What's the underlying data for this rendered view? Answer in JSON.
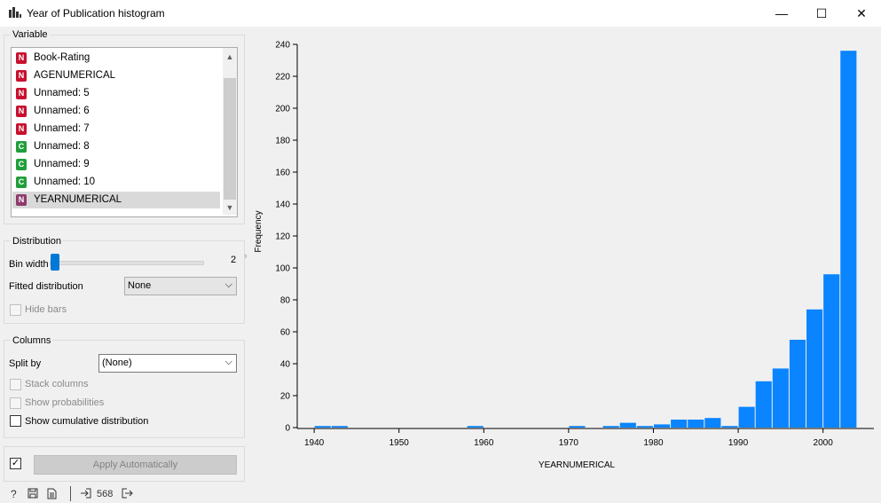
{
  "window": {
    "title": "Year of Publication histogram",
    "minimize": "—",
    "maximize": "☐",
    "close": "✕"
  },
  "variable_group": {
    "label": "Variable",
    "items": [
      {
        "badge": "N",
        "badge_color": "#c8102e",
        "label": "Book-Rating",
        "selected": false
      },
      {
        "badge": "N",
        "badge_color": "#c8102e",
        "label": "AGENUMERICAL",
        "selected": false
      },
      {
        "badge": "N",
        "badge_color": "#c8102e",
        "label": "Unnamed: 5",
        "selected": false
      },
      {
        "badge": "N",
        "badge_color": "#c8102e",
        "label": "Unnamed: 6",
        "selected": false
      },
      {
        "badge": "N",
        "badge_color": "#c8102e",
        "label": "Unnamed: 7",
        "selected": false
      },
      {
        "badge": "C",
        "badge_color": "#1f9f3a",
        "label": "Unnamed: 8",
        "selected": false
      },
      {
        "badge": "C",
        "badge_color": "#1f9f3a",
        "label": "Unnamed: 9",
        "selected": false
      },
      {
        "badge": "C",
        "badge_color": "#1f9f3a",
        "label": "Unnamed: 10",
        "selected": false
      },
      {
        "badge": "N",
        "badge_color": "#8e3a6c",
        "label": "YEARNUMERICAL",
        "selected": true
      }
    ]
  },
  "distribution_group": {
    "label": "Distribution",
    "bin_width_label": "Bin width",
    "bin_width_value": "2",
    "fitted_label": "Fitted distribution",
    "fitted_value": "None",
    "hide_bars_label": "Hide bars"
  },
  "columns_group": {
    "label": "Columns",
    "split_by_label": "Split by",
    "split_by_value": "(None)",
    "stack_label": "Stack columns",
    "probabilities_label": "Show probabilities",
    "cumulative_label": "Show cumulative distribution"
  },
  "apply": {
    "label": "Apply Automatically",
    "checked": true
  },
  "status": {
    "count": "568"
  },
  "accent_color": "#0078d7",
  "bar_color": "#0a84ff",
  "chart_data": {
    "type": "bar",
    "xlabel": "YEARNUMERICAL",
    "ylabel": "Frequency",
    "xlim": [
      1938,
      2006
    ],
    "ylim": [
      0,
      240
    ],
    "x_ticks": [
      "1940",
      "1950",
      "1960",
      "1970",
      "1980",
      "1990",
      "2000"
    ],
    "y_ticks": [
      "0",
      "20",
      "40",
      "60",
      "80",
      "100",
      "120",
      "140",
      "160",
      "180",
      "200",
      "220",
      "240"
    ],
    "bin_width": 2,
    "bins": [
      {
        "x": 1940,
        "value": 1
      },
      {
        "x": 1942,
        "value": 1
      },
      {
        "x": 1958,
        "value": 1
      },
      {
        "x": 1970,
        "value": 1
      },
      {
        "x": 1974,
        "value": 1
      },
      {
        "x": 1976,
        "value": 3
      },
      {
        "x": 1978,
        "value": 1
      },
      {
        "x": 1980,
        "value": 2
      },
      {
        "x": 1982,
        "value": 5
      },
      {
        "x": 1984,
        "value": 5
      },
      {
        "x": 1986,
        "value": 6
      },
      {
        "x": 1988,
        "value": 1
      },
      {
        "x": 1990,
        "value": 13
      },
      {
        "x": 1992,
        "value": 29
      },
      {
        "x": 1994,
        "value": 37
      },
      {
        "x": 1996,
        "value": 55
      },
      {
        "x": 1998,
        "value": 74
      },
      {
        "x": 2000,
        "value": 96
      },
      {
        "x": 2002,
        "value": 236
      }
    ]
  }
}
